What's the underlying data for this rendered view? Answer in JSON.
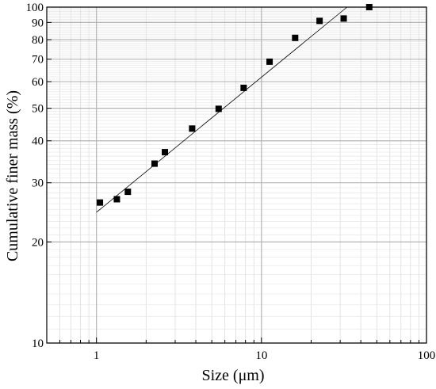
{
  "chart_data": {
    "type": "scatter",
    "title": "",
    "xlabel": "Size (μm)",
    "ylabel": "Cumulative finer mass (%)",
    "xscale": "log",
    "yscale": "log",
    "xlim": [
      0.5,
      100
    ],
    "ylim": [
      10,
      100
    ],
    "x_ticks": [
      {
        "value": 1,
        "label": "1"
      },
      {
        "value": 10,
        "label": "10"
      },
      {
        "value": 100,
        "label": "100"
      }
    ],
    "y_ticks": [
      {
        "value": 10,
        "label": "10"
      },
      {
        "value": 20,
        "label": "20"
      },
      {
        "value": 30,
        "label": "30"
      },
      {
        "value": 40,
        "label": "40"
      },
      {
        "value": 50,
        "label": "50"
      },
      {
        "value": 60,
        "label": "60"
      },
      {
        "value": 70,
        "label": "70"
      },
      {
        "value": 80,
        "label": "80"
      },
      {
        "value": 90,
        "label": "90"
      },
      {
        "value": 100,
        "label": "100"
      }
    ],
    "grid": true,
    "marker": "filled-square",
    "marker_color": "#000000",
    "series": [
      {
        "points": [
          {
            "x": 1.05,
            "y": 26.2
          },
          {
            "x": 1.33,
            "y": 26.8
          },
          {
            "x": 1.55,
            "y": 28.2
          },
          {
            "x": 2.25,
            "y": 34.2
          },
          {
            "x": 2.6,
            "y": 37.0
          },
          {
            "x": 3.8,
            "y": 43.5
          },
          {
            "x": 5.5,
            "y": 49.8
          },
          {
            "x": 7.8,
            "y": 57.5
          },
          {
            "x": 11.2,
            "y": 68.8
          },
          {
            "x": 16.0,
            "y": 81.0
          },
          {
            "x": 22.5,
            "y": 91.0
          },
          {
            "x": 31.5,
            "y": 92.5
          },
          {
            "x": 45.0,
            "y": 100.0
          }
        ]
      }
    ],
    "fit_line": {
      "x1": 1.0,
      "y1": 24.5,
      "x2": 33.0,
      "y2": 100.0
    }
  }
}
